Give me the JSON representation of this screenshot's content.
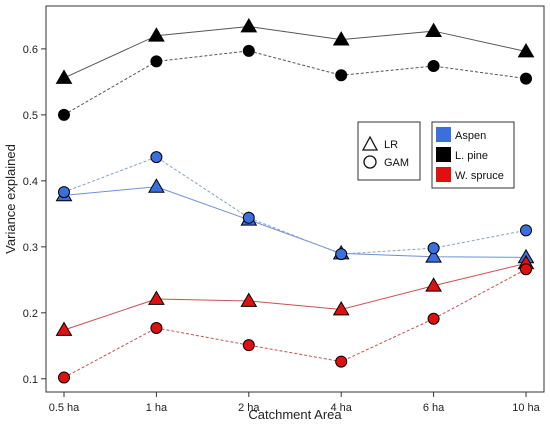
{
  "chart_data": {
    "type": "line",
    "title": "",
    "xlabel": "Catchment Area",
    "ylabel": "Variance explained",
    "categories": [
      "0.5 ha",
      "1 ha",
      "2 ha",
      "4 ha",
      "6 ha",
      "10 ha"
    ],
    "ylim": [
      0.08,
      0.665
    ],
    "yticks": [
      0.1,
      0.2,
      0.3,
      0.4,
      0.5,
      0.6
    ],
    "grid": false,
    "species_legend": [
      {
        "name": "Aspen",
        "color": "#3b6fe0"
      },
      {
        "name": "L. pine",
        "color": "#000000"
      },
      {
        "name": "W. spruce",
        "color": "#e01010"
      }
    ],
    "method_legend": [
      {
        "name": "LR",
        "marker": "triangle",
        "line": "solid"
      },
      {
        "name": "GAM",
        "marker": "circle",
        "line": "dashed"
      }
    ],
    "series": [
      {
        "species": "L. pine",
        "method": "LR",
        "color": "#000000",
        "line_color": "#555555",
        "values": [
          0.556,
          0.62,
          0.634,
          0.614,
          0.627,
          0.596
        ]
      },
      {
        "species": "L. pine",
        "method": "GAM",
        "color": "#000000",
        "line_color": "#555555",
        "values": [
          0.5,
          0.581,
          0.597,
          0.56,
          0.574,
          0.555
        ]
      },
      {
        "species": "Aspen",
        "method": "LR",
        "color": "#3b6fe0",
        "line_color": "#6f8fd8",
        "values": [
          0.378,
          0.391,
          0.341,
          0.29,
          0.285,
          0.284
        ]
      },
      {
        "species": "Aspen",
        "method": "GAM",
        "color": "#3b6fe0",
        "line_color": "#8aa0c8",
        "values": [
          0.383,
          0.436,
          0.344,
          0.289,
          0.298,
          0.325
        ]
      },
      {
        "species": "W. spruce",
        "method": "LR",
        "color": "#e01010",
        "line_color": "#c85050",
        "values": [
          0.174,
          0.221,
          0.218,
          0.205,
          0.241,
          0.275
        ]
      },
      {
        "species": "W. spruce",
        "method": "GAM",
        "color": "#e01010",
        "line_color": "#c85050",
        "values": [
          0.102,
          0.177,
          0.151,
          0.126,
          0.191,
          0.266
        ]
      }
    ]
  }
}
